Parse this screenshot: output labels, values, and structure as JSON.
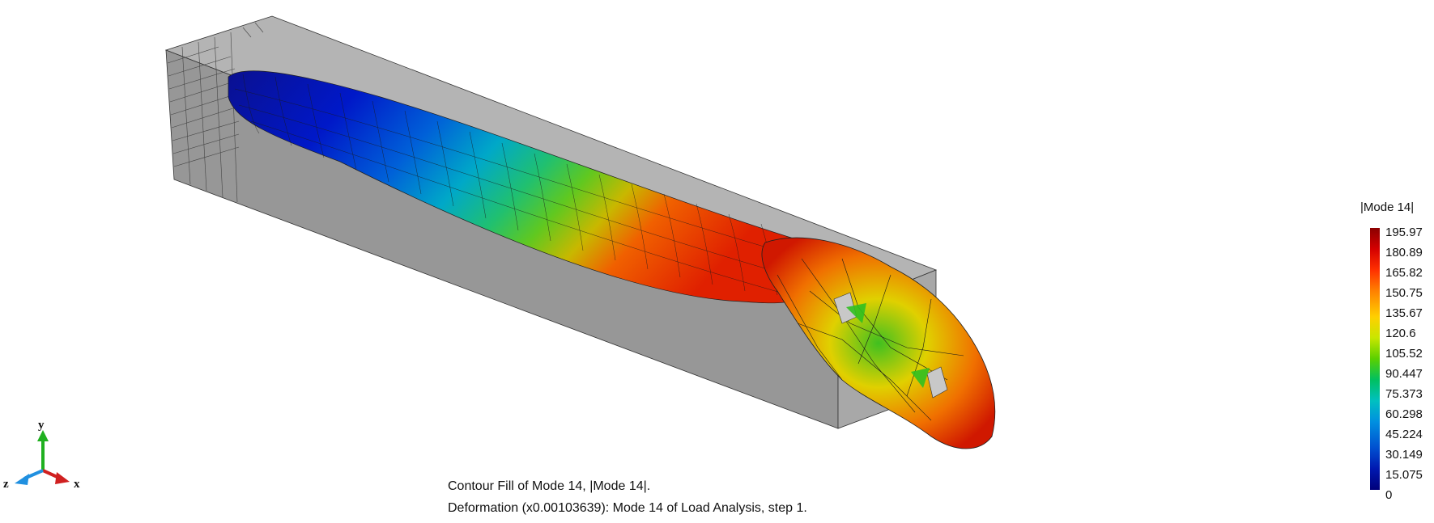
{
  "legend": {
    "title": "|Mode 14|",
    "ticks": [
      "195.97",
      "180.89",
      "165.82",
      "150.75",
      "135.67",
      "120.6",
      "105.52",
      "90.447",
      "75.373",
      "60.298",
      "45.224",
      "30.149",
      "15.075",
      "0"
    ]
  },
  "caption": {
    "line1": "Contour Fill of Mode 14, |Mode 14|.",
    "line2": "Deformation (x0.00103639): Mode 14 of Load Analysis, step 1."
  },
  "triad": {
    "y_label": "y",
    "x_label": "x",
    "z_label": "z"
  },
  "colors": {
    "background": "#ffffff",
    "beam": "#9a9a9a",
    "contour_max": "#8b0000",
    "contour_min": "#00007a"
  }
}
